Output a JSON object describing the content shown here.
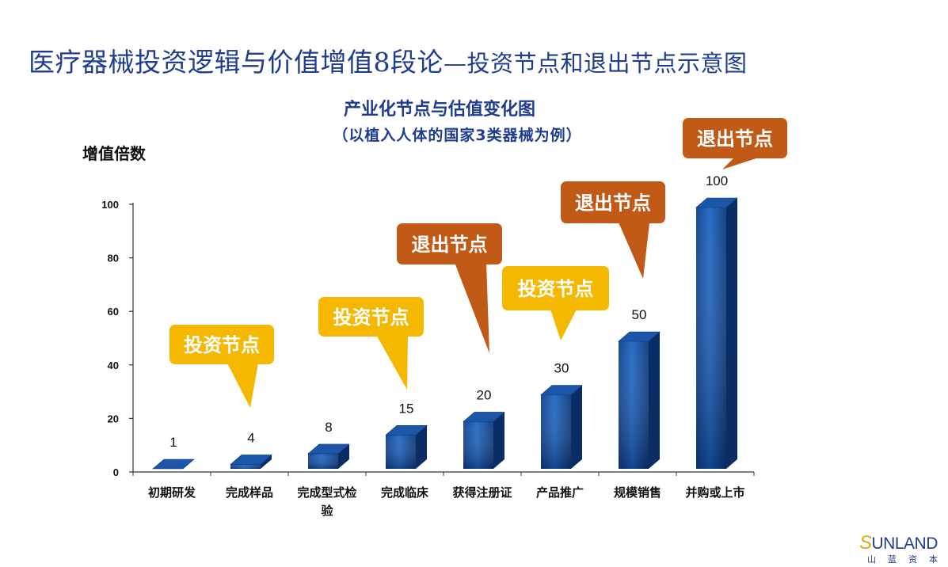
{
  "slide": {
    "title": "医疗器械投资逻辑与价值增值8段论",
    "title_suffix": "—投资节点和退出节点示意图"
  },
  "chart_data": {
    "type": "bar",
    "title": "产业化节点与估值变化图",
    "subtitle": "（以植入人体的国家3类器械为例）",
    "ylabel": "增值倍数",
    "xlabel": "",
    "categories": [
      "初期研发",
      "完成样品",
      "完成型式检验",
      "完成临床",
      "获得注册证",
      "产品推广",
      "规模销售",
      "并购或上市"
    ],
    "values": [
      1,
      4,
      8,
      15,
      20,
      30,
      50,
      100
    ],
    "value_labels": [
      "1",
      "4",
      "8",
      "15",
      "20",
      "30",
      "50",
      "100"
    ],
    "ylim": [
      0,
      100
    ],
    "yticks": [
      0,
      20,
      40,
      60,
      80,
      100
    ],
    "grid": false,
    "bar_style": "3d",
    "bar_color": "#1a5bb0",
    "annotations": [
      {
        "text": "投资节点",
        "type": "invest",
        "points_to": "完成样品"
      },
      {
        "text": "投资节点",
        "type": "invest",
        "points_to": "完成临床"
      },
      {
        "text": "退出节点",
        "type": "exit",
        "points_to": "获得注册证"
      },
      {
        "text": "投资节点",
        "type": "invest",
        "points_to": "产品推广"
      },
      {
        "text": "退出节点",
        "type": "exit",
        "points_to": "规模销售"
      },
      {
        "text": "退出节点",
        "type": "exit",
        "points_to": "并购或上市"
      }
    ],
    "colors": {
      "invest": "#f5b800",
      "exit": "#c25a17"
    }
  },
  "logo": {
    "brand_initial": "S",
    "brand_rest": "UNLAND",
    "brand_cn": "山蓝资本"
  }
}
